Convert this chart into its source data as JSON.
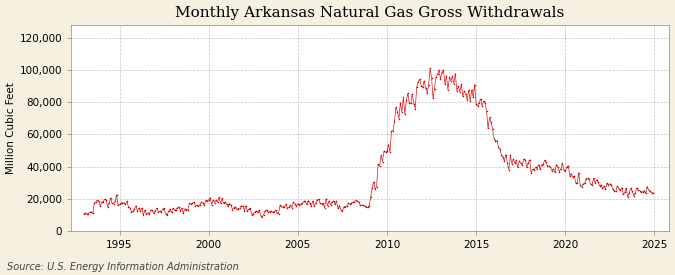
{
  "title": "Monthly Arkansas Natural Gas Gross Withdrawals",
  "ylabel": "Million Cubic Feet",
  "source": "Source: U.S. Energy Information Administration",
  "figure_bg": "#f5f0e0",
  "plot_bg": "#ffffff",
  "line_color": "#cc0000",
  "ylim": [
    0,
    128000
  ],
  "yticks": [
    0,
    20000,
    40000,
    60000,
    80000,
    100000,
    120000
  ],
  "ytick_labels": [
    "0",
    "20,000",
    "40,000",
    "60,000",
    "80,000",
    "100,000",
    "120,000"
  ],
  "xticks": [
    1995,
    2000,
    2005,
    2010,
    2015,
    2020,
    2025
  ],
  "xlim_start": 1992.3,
  "xlim_end": 2025.8,
  "title_fontsize": 11,
  "label_fontsize": 7.5,
  "tick_fontsize": 7.5,
  "source_fontsize": 7
}
